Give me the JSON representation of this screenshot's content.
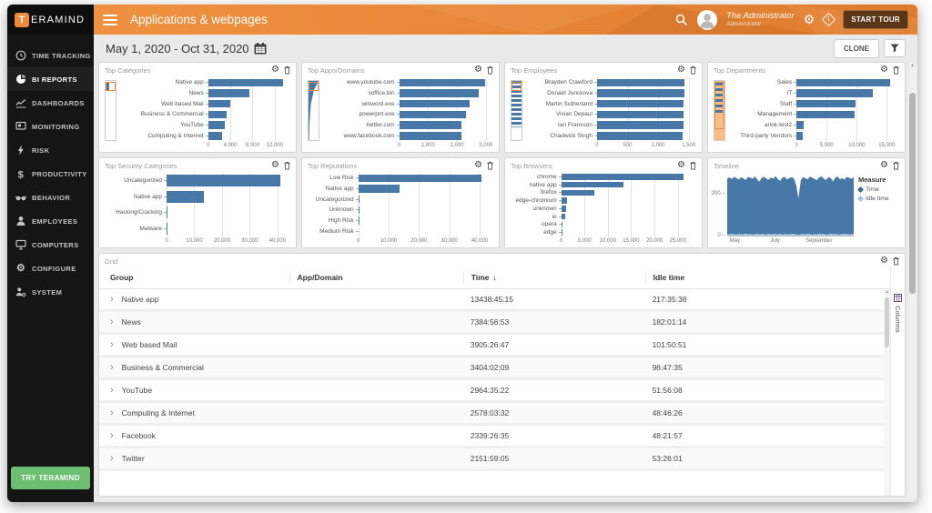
{
  "app": {
    "logo_t": "T",
    "logo_rest": "ERAMIND"
  },
  "header": {
    "title": "Applications & webpages",
    "user_name": "The Administrator",
    "user_role": "Administrator",
    "start_tour": "START TOUR"
  },
  "toolbar": {
    "date_range": "May 1, 2020 - Oct 31, 2020",
    "clone": "CLONE"
  },
  "sidebar": {
    "items": [
      {
        "label": "TIME TRACKING",
        "icon": "clock-icon",
        "active": false
      },
      {
        "label": "BI REPORTS",
        "icon": "pie-chart-icon",
        "active": true
      },
      {
        "label": "DASHBOARDS",
        "icon": "line-chart-icon",
        "active": false
      },
      {
        "label": "MONITORING",
        "icon": "monitor-icon",
        "active": false
      },
      {
        "label": "RISK",
        "icon": "bolt-icon",
        "active": false
      },
      {
        "label": "PRODUCTIVITY",
        "icon": "dollar-icon",
        "active": false
      },
      {
        "label": "BEHAVIOR",
        "icon": "glasses-icon",
        "active": false
      },
      {
        "label": "EMPLOYEES",
        "icon": "person-icon",
        "active": false
      },
      {
        "label": "COMPUTERS",
        "icon": "computer-icon",
        "active": false
      },
      {
        "label": "CONFIGURE",
        "icon": "gear-icon",
        "active": false
      },
      {
        "label": "SYSTEM",
        "icon": "system-icon",
        "active": false
      }
    ],
    "try_button": "TRY TERAMIND"
  },
  "chart_data": [
    {
      "type": "bar",
      "title": "Top Categories",
      "categories": [
        "Native app",
        "News",
        "Web based Mail",
        "Business & Commercial",
        "YouTube",
        "Computing & Internet"
      ],
      "values": [
        13438,
        7385,
        3905,
        3404,
        2964,
        2578
      ],
      "x_ticks": [
        0,
        4000,
        8000,
        12000
      ],
      "xlim": [
        0,
        14000
      ]
    },
    {
      "type": "bar",
      "title": "Top Apps/Domains",
      "categories": [
        "www.youtube.com",
        "soffice.bin",
        "winword.exe",
        "powerpnt.exe",
        "twitter.com",
        "www.facebook.com"
      ],
      "values": [
        2960,
        2750,
        2450,
        2300,
        2160,
        2150
      ],
      "x_ticks": [
        0,
        1000,
        2000,
        3000
      ],
      "xlim": [
        0,
        3100
      ]
    },
    {
      "type": "bar",
      "title": "Top Employees",
      "categories": [
        "Brayden Crawford",
        "Donald Jurickova",
        "Martin Sutherland",
        "Vivian Depaul",
        "Ian Fransson",
        "Chadwick Singh"
      ],
      "values": [
        1435,
        1425,
        1420,
        1415,
        1410,
        1400
      ],
      "x_ticks": [
        0,
        500,
        1000,
        1500
      ],
      "xlim": [
        0,
        1550
      ]
    },
    {
      "type": "bar",
      "title": "Top Departments",
      "categories": [
        "Sales",
        "IT",
        "Staff",
        "Management",
        "ariok-test2",
        "Third-party Vendors"
      ],
      "values": [
        15500,
        12700,
        9800,
        9700,
        1200,
        1100
      ],
      "x_ticks": [
        0,
        5000,
        10000,
        15000
      ],
      "xlim": [
        0,
        16300
      ]
    },
    {
      "type": "bar",
      "title": "Top Security Categories",
      "categories": [
        "Uncategorized",
        "Native app",
        "Hacking/Cracking",
        "Malware"
      ],
      "values": [
        41000,
        13500,
        120,
        60
      ],
      "x_ticks": [
        0,
        10000,
        20000,
        30000,
        40000
      ],
      "xlim": [
        0,
        43000
      ]
    },
    {
      "type": "bar",
      "title": "Top Reputations",
      "categories": [
        "Low Risk",
        "Native app",
        "Uncategorized",
        "Unknown",
        "High Risk",
        "Medium Risk"
      ],
      "values": [
        40500,
        13500,
        350,
        60,
        40,
        20
      ],
      "x_ticks": [
        0,
        10000,
        20000,
        30000,
        40000
      ],
      "xlim": [
        0,
        43000
      ]
    },
    {
      "type": "bar",
      "title": "Top Browsers",
      "categories": [
        "chrome",
        "native app",
        "firefox",
        "edge-chromium",
        "unknown",
        "ie",
        "opera",
        "edge"
      ],
      "values": [
        26200,
        13400,
        7000,
        1300,
        1100,
        800,
        60,
        30
      ],
      "x_ticks": [
        0,
        5000,
        10000,
        15000,
        20000,
        25000
      ],
      "xlim": [
        0,
        28000
      ]
    },
    {
      "type": "area",
      "title": "Timeline",
      "legend_title": "Measure",
      "ylim": [
        0,
        300
      ],
      "y_ticks": [
        0,
        200
      ],
      "x_ticks": [
        {
          "label": "May",
          "pos": 0.02
        },
        {
          "label": "July",
          "pos": 0.34
        },
        {
          "label": "September",
          "pos": 0.62
        }
      ],
      "series": [
        {
          "name": "Time",
          "color": "#4878a8",
          "values": [
            272,
            278,
            270,
            281,
            275,
            268,
            279,
            274,
            266,
            280,
            277,
            271,
            283,
            269,
            258,
            276,
            281,
            273,
            267,
            278,
            272,
            284,
            270,
            262,
            277,
            281,
            268,
            275,
            279,
            273,
            240,
            178,
            265,
            280,
            274,
            269,
            282,
            276,
            271,
            265,
            278,
            283,
            272,
            266,
            280,
            275,
            259,
            277,
            282,
            270,
            274,
            268,
            281,
            276,
            272,
            279
          ]
        },
        {
          "name": "Idle time",
          "color": "#a9cbe8",
          "values": [
            8,
            6,
            9,
            7,
            5,
            8,
            6,
            7,
            9,
            6,
            8,
            5,
            7,
            9,
            6,
            8,
            7,
            5,
            9,
            6,
            8,
            7,
            6,
            9,
            5,
            8,
            7,
            6,
            8,
            9,
            5,
            4,
            7,
            8,
            6,
            9,
            7,
            5,
            8,
            6,
            9,
            7,
            8,
            5,
            6,
            9,
            7,
            8,
            6,
            5,
            9,
            7,
            8,
            6,
            7,
            8
          ]
        }
      ]
    }
  ],
  "grid": {
    "title": "Grid",
    "columns_tab": "Columns",
    "columns": [
      "Group",
      "App/Domain",
      "Time",
      "Idle time"
    ],
    "sort_column": "Time",
    "rows": [
      {
        "group": "Native app",
        "app_domain": "",
        "time": "13438:45:15",
        "idle": "217:35:38"
      },
      {
        "group": "News",
        "app_domain": "",
        "time": "7384:56:53",
        "idle": "182:01:14"
      },
      {
        "group": "Web based Mail",
        "app_domain": "",
        "time": "3905:26:47",
        "idle": "101:50:51"
      },
      {
        "group": "Business & Commercial",
        "app_domain": "",
        "time": "3404:02:09",
        "idle": "96:47:35"
      },
      {
        "group": "YouTube",
        "app_domain": "",
        "time": "2964:35:22",
        "idle": "51:56:08"
      },
      {
        "group": "Computing & Internet",
        "app_domain": "",
        "time": "2578:03:32",
        "idle": "48:46:26"
      },
      {
        "group": "Facebook",
        "app_domain": "",
        "time": "2339:26:35",
        "idle": "48:21:57"
      },
      {
        "group": "Twitter",
        "app_domain": "",
        "time": "2151:59:05",
        "idle": "53:26:01"
      }
    ]
  }
}
